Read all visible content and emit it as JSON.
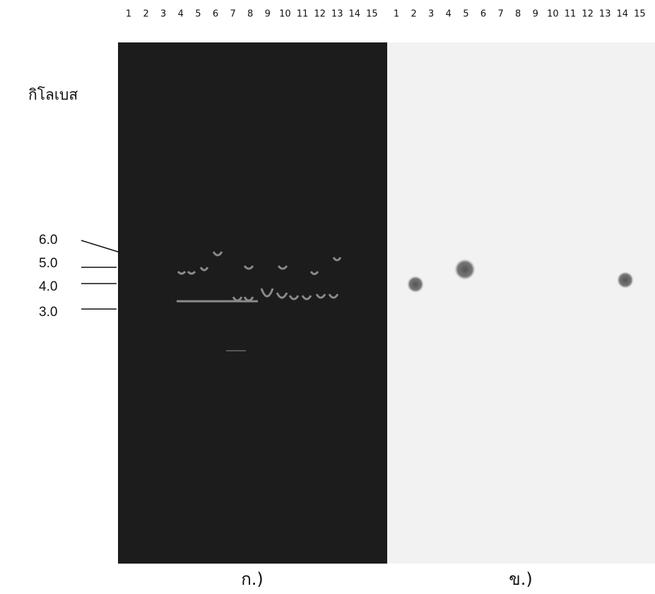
{
  "figure": {
    "lanes_a": [
      "1",
      "2",
      "3",
      "4",
      "5",
      "6",
      "7",
      "8",
      "9",
      "10",
      "11",
      "12",
      "13",
      "14",
      "15"
    ],
    "lanes_b": [
      "1",
      "2",
      "3",
      "4",
      "5",
      "6",
      "7",
      "8",
      "9",
      "10",
      "11",
      "12",
      "13",
      "14",
      "15"
    ],
    "unit_label": "กิโลเบส",
    "markers": [
      "6.0",
      "5.0",
      "4.0",
      "3.0"
    ],
    "caption_a": "ก.)",
    "caption_b": "ข.)"
  }
}
